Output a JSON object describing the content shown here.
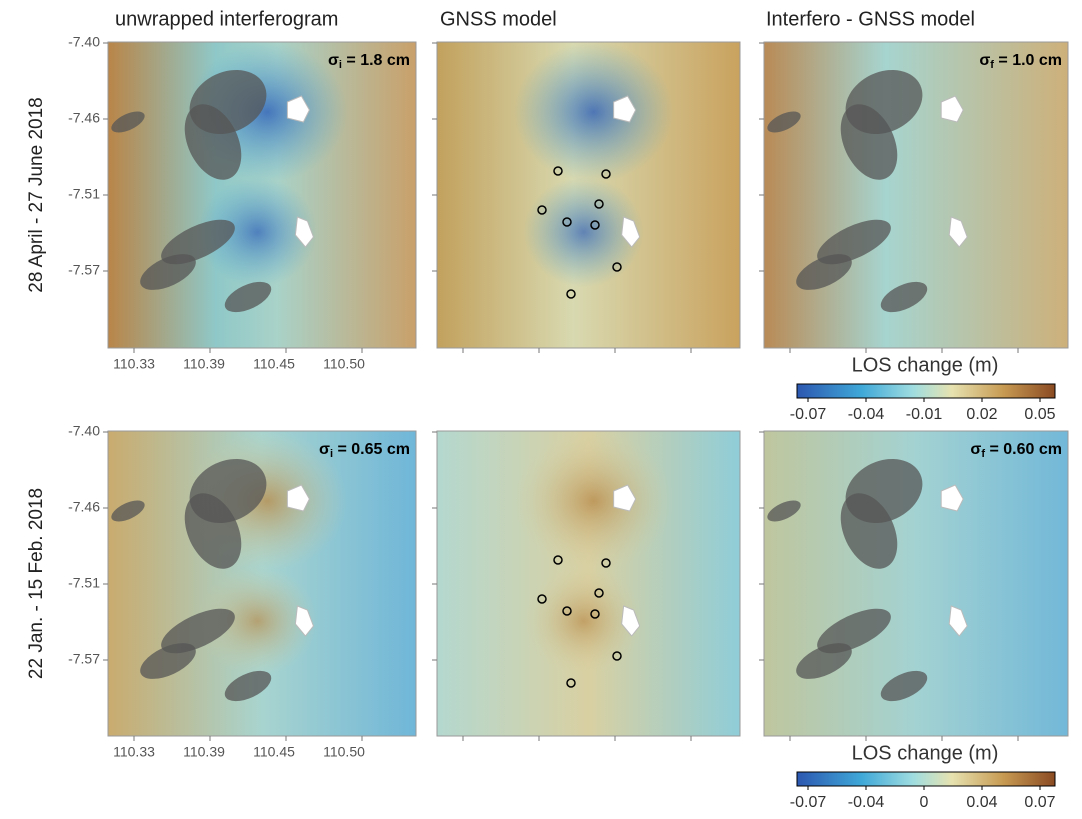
{
  "column_titles": [
    "unwrapped interferogram",
    "GNSS model",
    "Interfero - GNSS model"
  ],
  "rows": [
    {
      "label": "28 April - 27 June 2018",
      "sigma_left": {
        "symbol": "σ",
        "subscript": "i",
        "value": " = 1.8 cm"
      },
      "sigma_right": {
        "symbol": "σ",
        "subscript": "f",
        "value": " = 1.0 cm"
      },
      "colorbar": {
        "title": "LOS change (m)",
        "ticks": [
          "-0.07",
          "-0.04",
          "-0.01",
          "0.02",
          "0.05"
        ]
      }
    },
    {
      "label": "22 Jan. - 15 Feb. 2018",
      "sigma_left": {
        "symbol": "σ",
        "subscript": "i",
        "value": " = 0.65 cm"
      },
      "sigma_right": {
        "symbol": "σ",
        "subscript": "f",
        "value": " = 0.60 cm"
      },
      "colorbar": {
        "title": "LOS change (m)",
        "ticks": [
          "-0.07",
          "-0.04",
          "0",
          "0.04",
          "0.07"
        ]
      }
    }
  ],
  "yticks": [
    "-7.40",
    "-7.46",
    "-7.51",
    "-7.57"
  ],
  "xticks": [
    "110.33",
    "110.39",
    "110.45",
    "110.50"
  ]
}
